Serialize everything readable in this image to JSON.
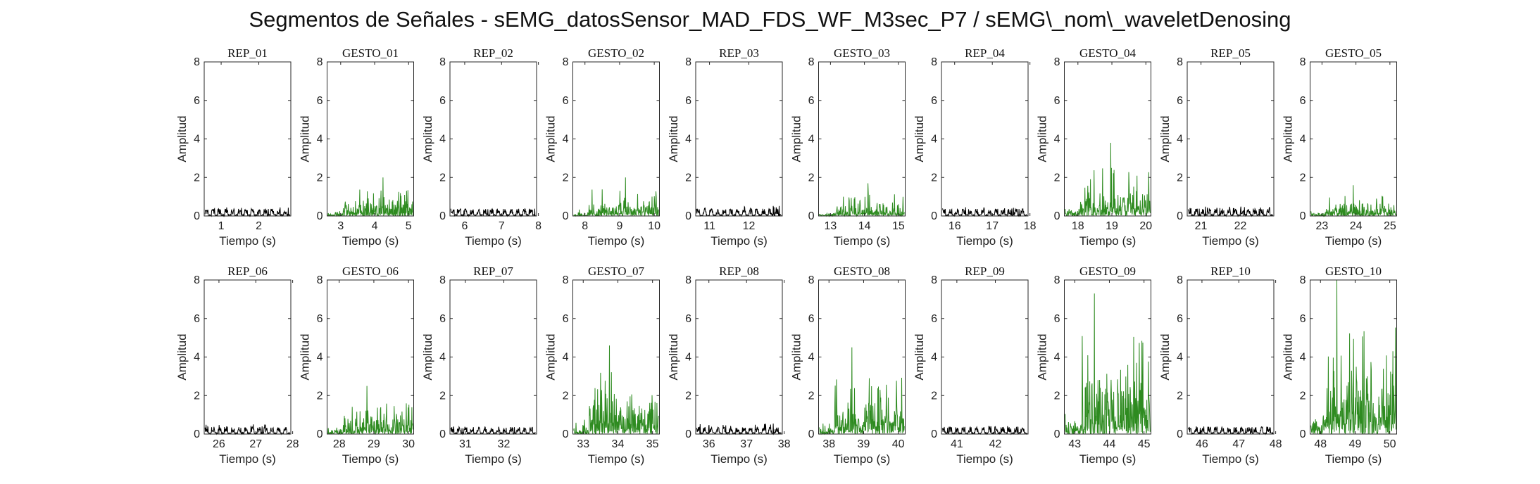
{
  "figure": {
    "title": "Segmentos de Señales - sEMG_datosSensor_MAD_FDS_WF_M3sec_P7 / sEMG\\_nom\\_waveletDenosing"
  },
  "colors": {
    "rep": "#000000",
    "gesto": "#2e8b20",
    "axis": "#262626"
  },
  "chart_data": [
    {
      "type": "line",
      "title": "REP_01",
      "xlabel": "Tiempo (s)",
      "ylabel": "Amplitud",
      "xlim": [
        0.55,
        2.85
      ],
      "ylim": [
        0,
        8
      ],
      "xticks": [
        1,
        2
      ],
      "yticks": [
        0,
        2,
        4,
        6,
        8
      ],
      "kind": "rep",
      "approx_peak": 0.45
    },
    {
      "type": "line",
      "title": "GESTO_01",
      "xlabel": "Tiempo (s)",
      "ylabel": "Amplitud",
      "xlim": [
        2.6,
        5.15
      ],
      "ylim": [
        0,
        8
      ],
      "xticks": [
        3,
        4,
        5
      ],
      "yticks": [
        0,
        2,
        4,
        6,
        8
      ],
      "kind": "gesto",
      "approx_peak": 2.0
    },
    {
      "type": "line",
      "title": "REP_02",
      "xlabel": "Tiempo (s)",
      "ylabel": "Amplitud",
      "xlim": [
        5.6,
        7.95
      ],
      "ylim": [
        0,
        8
      ],
      "xticks": [
        6,
        7,
        8
      ],
      "yticks": [
        0,
        2,
        4,
        6,
        8
      ],
      "kind": "rep",
      "approx_peak": 0.4
    },
    {
      "type": "line",
      "title": "GESTO_02",
      "xlabel": "Tiempo (s)",
      "ylabel": "Amplitud",
      "xlim": [
        7.65,
        10.15
      ],
      "ylim": [
        0,
        8
      ],
      "xticks": [
        8,
        9,
        10
      ],
      "yticks": [
        0,
        2,
        4,
        6,
        8
      ],
      "kind": "gesto",
      "approx_peak": 2.0
    },
    {
      "type": "line",
      "title": "REP_03",
      "xlabel": "Tiempo (s)",
      "ylabel": "Amplitud",
      "xlim": [
        10.65,
        12.85
      ],
      "ylim": [
        0,
        8
      ],
      "xticks": [
        11,
        12
      ],
      "yticks": [
        0,
        2,
        4,
        6,
        8
      ],
      "kind": "rep",
      "approx_peak": 0.55
    },
    {
      "type": "line",
      "title": "GESTO_03",
      "xlabel": "Tiempo (s)",
      "ylabel": "Amplitud",
      "xlim": [
        12.65,
        15.2
      ],
      "ylim": [
        0,
        8
      ],
      "xticks": [
        13,
        14,
        15
      ],
      "yticks": [
        0,
        2,
        4,
        6,
        8
      ],
      "kind": "gesto",
      "approx_peak": 1.7
    },
    {
      "type": "line",
      "title": "REP_04",
      "xlabel": "Tiempo (s)",
      "ylabel": "Amplitud",
      "xlim": [
        15.65,
        17.95
      ],
      "ylim": [
        0,
        8
      ],
      "xticks": [
        16,
        17,
        18
      ],
      "yticks": [
        0,
        2,
        4,
        6,
        8
      ],
      "kind": "rep",
      "approx_peak": 0.45
    },
    {
      "type": "line",
      "title": "GESTO_04",
      "xlabel": "Tiempo (s)",
      "ylabel": "Amplitud",
      "xlim": [
        17.6,
        20.15
      ],
      "ylim": [
        0,
        8
      ],
      "xticks": [
        18,
        19,
        20
      ],
      "yticks": [
        0,
        2,
        4,
        6,
        8
      ],
      "kind": "gesto",
      "approx_peak": 3.8
    },
    {
      "type": "line",
      "title": "REP_05",
      "xlabel": "Tiempo (s)",
      "ylabel": "Amplitud",
      "xlim": [
        20.65,
        22.85
      ],
      "ylim": [
        0,
        8
      ],
      "xticks": [
        21,
        22
      ],
      "yticks": [
        0,
        2,
        4,
        6,
        8
      ],
      "kind": "rep",
      "approx_peak": 0.5
    },
    {
      "type": "line",
      "title": "GESTO_05",
      "xlabel": "Tiempo (s)",
      "ylabel": "Amplitud",
      "xlim": [
        22.65,
        25.2
      ],
      "ylim": [
        0,
        8
      ],
      "xticks": [
        23,
        24,
        25
      ],
      "yticks": [
        0,
        2,
        4,
        6,
        8
      ],
      "kind": "gesto",
      "approx_peak": 1.6
    },
    {
      "type": "line",
      "title": "REP_06",
      "xlabel": "Tiempo (s)",
      "ylabel": "Amplitud",
      "xlim": [
        25.6,
        27.95
      ],
      "ylim": [
        0,
        8
      ],
      "xticks": [
        26,
        27,
        28
      ],
      "yticks": [
        0,
        2,
        4,
        6,
        8
      ],
      "kind": "rep",
      "approx_peak": 0.5
    },
    {
      "type": "line",
      "title": "GESTO_06",
      "xlabel": "Tiempo (s)",
      "ylabel": "Amplitud",
      "xlim": [
        27.65,
        30.15
      ],
      "ylim": [
        0,
        8
      ],
      "xticks": [
        28,
        29,
        30
      ],
      "yticks": [
        0,
        2,
        4,
        6,
        8
      ],
      "kind": "gesto",
      "approx_peak": 2.5
    },
    {
      "type": "line",
      "title": "REP_07",
      "xlabel": "Tiempo (s)",
      "ylabel": "Amplitud",
      "xlim": [
        30.6,
        32.85
      ],
      "ylim": [
        0,
        8
      ],
      "xticks": [
        31,
        32
      ],
      "yticks": [
        0,
        2,
        4,
        6,
        8
      ],
      "kind": "rep",
      "approx_peak": 0.4
    },
    {
      "type": "line",
      "title": "GESTO_07",
      "xlabel": "Tiempo (s)",
      "ylabel": "Amplitud",
      "xlim": [
        32.7,
        35.2
      ],
      "ylim": [
        0,
        8
      ],
      "xticks": [
        33,
        34,
        35
      ],
      "yticks": [
        0,
        2,
        4,
        6,
        8
      ],
      "kind": "gesto",
      "approx_peak": 4.6
    },
    {
      "type": "line",
      "title": "REP_08",
      "xlabel": "Tiempo (s)",
      "ylabel": "Amplitud",
      "xlim": [
        35.65,
        37.95
      ],
      "ylim": [
        0,
        8
      ],
      "xticks": [
        36,
        37,
        38
      ],
      "yticks": [
        0,
        2,
        4,
        6,
        8
      ],
      "kind": "rep",
      "approx_peak": 0.55
    },
    {
      "type": "line",
      "title": "GESTO_08",
      "xlabel": "Tiempo (s)",
      "ylabel": "Amplitud",
      "xlim": [
        37.7,
        40.2
      ],
      "ylim": [
        0,
        8
      ],
      "xticks": [
        38,
        39,
        40
      ],
      "yticks": [
        0,
        2,
        4,
        6,
        8
      ],
      "kind": "gesto",
      "approx_peak": 4.5
    },
    {
      "type": "line",
      "title": "REP_09",
      "xlabel": "Tiempo (s)",
      "ylabel": "Amplitud",
      "xlim": [
        40.6,
        42.85
      ],
      "ylim": [
        0,
        8
      ],
      "xticks": [
        41,
        42
      ],
      "yticks": [
        0,
        2,
        4,
        6,
        8
      ],
      "kind": "rep",
      "approx_peak": 0.45
    },
    {
      "type": "line",
      "title": "GESTO_09",
      "xlabel": "Tiempo (s)",
      "ylabel": "Amplitud",
      "xlim": [
        42.7,
        45.2
      ],
      "ylim": [
        0,
        8
      ],
      "xticks": [
        43,
        44,
        45
      ],
      "yticks": [
        0,
        2,
        4,
        6,
        8
      ],
      "kind": "gesto",
      "approx_peak": 7.3
    },
    {
      "type": "line",
      "title": "REP_10",
      "xlabel": "Tiempo (s)",
      "ylabel": "Amplitud",
      "xlim": [
        45.6,
        47.95
      ],
      "ylim": [
        0,
        8
      ],
      "xticks": [
        46,
        47,
        48
      ],
      "yticks": [
        0,
        2,
        4,
        6,
        8
      ],
      "kind": "rep",
      "approx_peak": 0.4
    },
    {
      "type": "line",
      "title": "GESTO_10",
      "xlabel": "Tiempo (s)",
      "ylabel": "Amplitud",
      "xlim": [
        47.7,
        50.2
      ],
      "ylim": [
        0,
        8
      ],
      "xticks": [
        48,
        49,
        50
      ],
      "yticks": [
        0,
        2,
        4,
        6,
        8
      ],
      "kind": "gesto",
      "approx_peak": 8.0
    }
  ]
}
